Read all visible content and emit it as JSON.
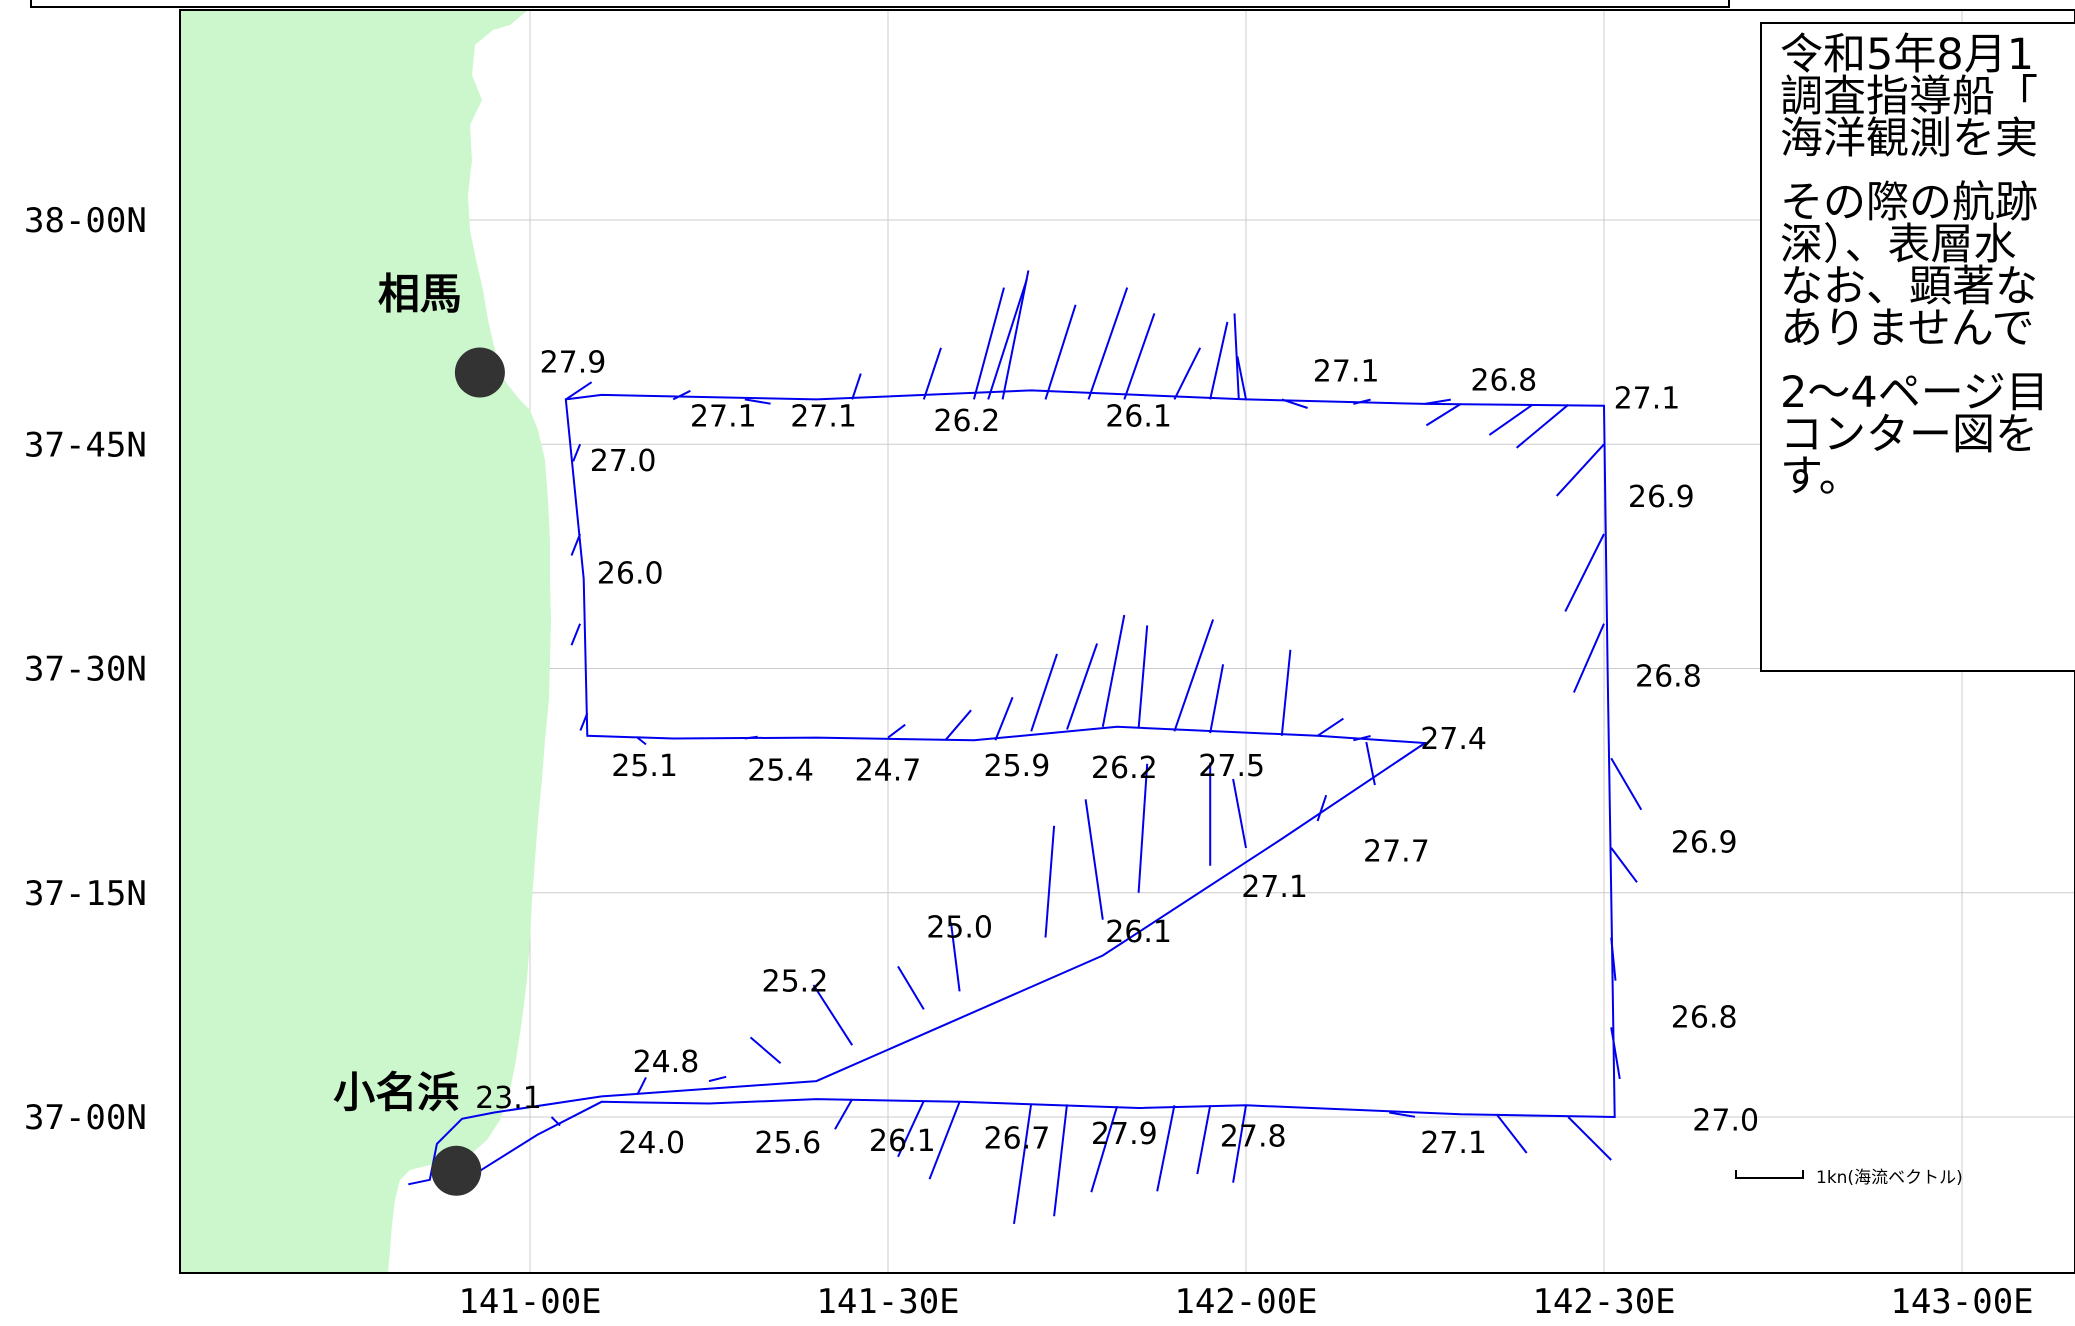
{
  "map": {
    "lon_ticks": [
      {
        "lon": 141.0,
        "label": "141-00E"
      },
      {
        "lon": 141.5,
        "label": "141-30E"
      },
      {
        "lon": 142.0,
        "label": "142-00E"
      },
      {
        "lon": 142.5,
        "label": "142-30E"
      },
      {
        "lon": 143.0,
        "label": "143-00E"
      }
    ],
    "lat_ticks": [
      {
        "lat": 38.0,
        "label": "38-00N"
      },
      {
        "lat": 37.75,
        "label": "37-45N"
      },
      {
        "lat": 37.5,
        "label": "37-30N"
      },
      {
        "lat": 37.25,
        "label": "37-15N"
      },
      {
        "lat": 37.0,
        "label": "37-00N"
      }
    ],
    "colors": {
      "land": "#ccf7cc",
      "track": "#0000ee",
      "grid": "#cccccc",
      "station": "#333333"
    },
    "places": [
      {
        "name": "相馬",
        "lon": 140.93,
        "lat": 37.83
      },
      {
        "name": "小名浜",
        "lon": 140.897,
        "lat": 36.94
      }
    ],
    "track": [
      [
        140.83,
        36.925
      ],
      [
        140.86,
        36.93
      ],
      [
        140.87,
        36.97
      ],
      [
        140.905,
        36.998
      ],
      [
        140.95,
        37.005
      ],
      [
        141.1,
        37.023
      ],
      [
        141.4,
        37.04
      ],
      [
        141.6,
        37.11
      ],
      [
        141.8,
        37.18
      ],
      [
        142.05,
        37.31
      ],
      [
        142.25,
        37.417
      ],
      [
        142.1,
        37.425
      ],
      [
        141.82,
        37.435
      ],
      [
        141.62,
        37.42
      ],
      [
        141.4,
        37.423
      ],
      [
        141.2,
        37.422
      ],
      [
        141.08,
        37.425
      ],
      [
        141.075,
        37.6
      ],
      [
        141.05,
        37.8
      ],
      [
        141.1,
        37.805
      ],
      [
        141.4,
        37.8
      ],
      [
        141.7,
        37.81
      ],
      [
        142.0,
        37.8
      ],
      [
        142.25,
        37.795
      ],
      [
        142.5,
        37.793
      ],
      [
        142.505,
        37.5
      ],
      [
        142.51,
        37.25
      ],
      [
        142.515,
        37.0
      ],
      [
        142.3,
        37.003
      ],
      [
        142.0,
        37.013
      ],
      [
        141.85,
        37.01
      ],
      [
        141.6,
        37.017
      ],
      [
        141.4,
        37.02
      ],
      [
        141.25,
        37.015
      ],
      [
        141.1,
        37.017
      ],
      [
        141.01,
        36.98
      ],
      [
        140.93,
        36.94
      ]
    ],
    "current_vectors": [
      [
        141.05,
        37.8,
        0.3,
        0.2
      ],
      [
        141.2,
        37.8,
        0.2,
        0.1
      ],
      [
        141.3,
        37.8,
        0.3,
        -0.05
      ],
      [
        141.45,
        37.8,
        0.1,
        0.3
      ],
      [
        141.55,
        37.8,
        0.2,
        0.6
      ],
      [
        141.62,
        37.8,
        0.35,
        1.3
      ],
      [
        141.64,
        37.8,
        0.45,
        1.4
      ],
      [
        141.66,
        37.8,
        0.3,
        1.5
      ],
      [
        141.72,
        37.8,
        0.35,
        1.1
      ],
      [
        141.78,
        37.8,
        0.45,
        1.3
      ],
      [
        141.83,
        37.8,
        0.35,
        1.0
      ],
      [
        141.9,
        37.8,
        0.3,
        0.6
      ],
      [
        141.95,
        37.8,
        0.2,
        0.9
      ],
      [
        141.99,
        37.8,
        -0.05,
        1.0
      ],
      [
        142.0,
        37.8,
        -0.1,
        0.5
      ],
      [
        142.05,
        37.8,
        0.3,
        -0.1
      ],
      [
        142.15,
        37.795,
        0.2,
        0.05
      ],
      [
        142.25,
        37.795,
        0.3,
        0.05
      ],
      [
        142.3,
        37.795,
        -0.4,
        -0.25
      ],
      [
        142.4,
        37.794,
        -0.5,
        -0.35
      ],
      [
        142.45,
        37.794,
        -0.6,
        -0.5
      ],
      [
        142.5,
        37.75,
        -0.55,
        -0.6
      ],
      [
        142.5,
        37.65,
        -0.45,
        -0.9
      ],
      [
        142.5,
        37.55,
        -0.35,
        -0.8
      ],
      [
        141.07,
        37.75,
        -0.08,
        -0.2
      ],
      [
        141.07,
        37.65,
        -0.1,
        -0.25
      ],
      [
        141.07,
        37.55,
        -0.1,
        -0.25
      ],
      [
        141.08,
        37.45,
        -0.08,
        -0.2
      ],
      [
        141.15,
        37.423,
        0.1,
        -0.08
      ],
      [
        141.3,
        37.422,
        0.15,
        0.02
      ],
      [
        141.5,
        37.423,
        0.2,
        0.15
      ],
      [
        141.58,
        37.42,
        0.3,
        0.35
      ],
      [
        141.65,
        37.42,
        0.2,
        0.5
      ],
      [
        141.7,
        37.43,
        0.3,
        0.9
      ],
      [
        141.75,
        37.432,
        0.35,
        1.0
      ],
      [
        141.8,
        37.435,
        0.25,
        1.3
      ],
      [
        141.85,
        37.433,
        0.1,
        1.2
      ],
      [
        141.9,
        37.43,
        0.45,
        1.3
      ],
      [
        141.95,
        37.428,
        0.15,
        0.8
      ],
      [
        142.05,
        37.425,
        0.1,
        1.0
      ],
      [
        142.1,
        37.425,
        0.3,
        0.2
      ],
      [
        142.15,
        37.42,
        0.2,
        0.05
      ],
      [
        142.18,
        37.37,
        -0.1,
        0.5
      ],
      [
        142.1,
        37.33,
        0.1,
        0.3
      ],
      [
        142.0,
        37.3,
        -0.15,
        0.8
      ],
      [
        141.95,
        37.28,
        0.0,
        1.2
      ],
      [
        141.85,
        37.25,
        0.1,
        1.5
      ],
      [
        141.8,
        37.22,
        -0.2,
        1.4
      ],
      [
        141.72,
        37.2,
        0.1,
        1.3
      ],
      [
        141.6,
        37.14,
        -0.1,
        0.8
      ],
      [
        141.55,
        37.12,
        -0.3,
        0.5
      ],
      [
        141.45,
        37.08,
        -0.45,
        0.7
      ],
      [
        141.35,
        37.06,
        -0.35,
        0.3
      ],
      [
        141.25,
        37.04,
        0.2,
        0.05
      ],
      [
        141.15,
        37.025,
        0.1,
        0.2
      ],
      [
        141.03,
        37.0,
        0.1,
        -0.1
      ],
      [
        141.45,
        37.02,
        -0.2,
        -0.35
      ],
      [
        141.55,
        37.018,
        -0.3,
        -0.65
      ],
      [
        141.6,
        37.017,
        -0.35,
        -0.9
      ],
      [
        141.7,
        37.015,
        -0.2,
        -1.4
      ],
      [
        141.75,
        37.014,
        -0.15,
        -1.3
      ],
      [
        141.82,
        37.012,
        -0.3,
        -1.0
      ],
      [
        141.9,
        37.013,
        -0.2,
        -1.0
      ],
      [
        141.95,
        37.013,
        -0.15,
        -0.8
      ],
      [
        142.0,
        37.013,
        -0.15,
        -0.9
      ],
      [
        142.2,
        37.005,
        0.3,
        -0.05
      ],
      [
        142.35,
        37.003,
        0.35,
        -0.45
      ],
      [
        142.45,
        37.0,
        0.5,
        -0.5
      ],
      [
        142.51,
        37.1,
        0.1,
        -0.6
      ],
      [
        142.51,
        37.2,
        0.05,
        -0.5
      ],
      [
        142.51,
        37.3,
        0.3,
        -0.4
      ],
      [
        142.51,
        37.4,
        0.35,
        -0.6
      ]
    ],
    "temperatures": [
      {
        "lon": 141.06,
        "lat": 37.83,
        "value": "27.9"
      },
      {
        "lon": 141.27,
        "lat": 37.77,
        "value": "27.1"
      },
      {
        "lon": 141.41,
        "lat": 37.77,
        "value": "27.1"
      },
      {
        "lon": 141.61,
        "lat": 37.765,
        "value": "26.2"
      },
      {
        "lon": 141.85,
        "lat": 37.77,
        "value": "26.1"
      },
      {
        "lon": 142.14,
        "lat": 37.82,
        "value": "27.1"
      },
      {
        "lon": 142.36,
        "lat": 37.81,
        "value": "26.8"
      },
      {
        "lon": 142.56,
        "lat": 37.79,
        "value": "27.1"
      },
      {
        "lon": 141.13,
        "lat": 37.72,
        "value": "27.0"
      },
      {
        "lon": 141.14,
        "lat": 37.595,
        "value": "26.0"
      },
      {
        "lon": 142.58,
        "lat": 37.68,
        "value": "26.9"
      },
      {
        "lon": 142.59,
        "lat": 37.48,
        "value": "26.8"
      },
      {
        "lon": 141.16,
        "lat": 37.38,
        "value": "25.1"
      },
      {
        "lon": 141.35,
        "lat": 37.375,
        "value": "25.4"
      },
      {
        "lon": 141.5,
        "lat": 37.375,
        "value": "24.7"
      },
      {
        "lon": 141.68,
        "lat": 37.38,
        "value": "25.9"
      },
      {
        "lon": 141.83,
        "lat": 37.378,
        "value": "26.2"
      },
      {
        "lon": 141.98,
        "lat": 37.38,
        "value": "27.5"
      },
      {
        "lon": 142.29,
        "lat": 37.41,
        "value": "27.4"
      },
      {
        "lon": 142.21,
        "lat": 37.285,
        "value": "27.7"
      },
      {
        "lon": 142.04,
        "lat": 37.245,
        "value": "27.1"
      },
      {
        "lon": 141.85,
        "lat": 37.195,
        "value": "26.1"
      },
      {
        "lon": 141.6,
        "lat": 37.2,
        "value": "25.0"
      },
      {
        "lon": 141.37,
        "lat": 37.14,
        "value": "25.2"
      },
      {
        "lon": 141.19,
        "lat": 37.05,
        "value": "24.8"
      },
      {
        "lon": 140.97,
        "lat": 37.01,
        "value": "23.1"
      },
      {
        "lon": 142.64,
        "lat": 37.295,
        "value": "26.9"
      },
      {
        "lon": 142.64,
        "lat": 37.1,
        "value": "26.8"
      },
      {
        "lon": 142.67,
        "lat": 36.985,
        "value": "27.0"
      },
      {
        "lon": 141.17,
        "lat": 36.96,
        "value": "24.0"
      },
      {
        "lon": 141.36,
        "lat": 36.96,
        "value": "25.6"
      },
      {
        "lon": 141.52,
        "lat": 36.962,
        "value": "26.1"
      },
      {
        "lon": 141.68,
        "lat": 36.965,
        "value": "26.7"
      },
      {
        "lon": 141.83,
        "lat": 36.97,
        "value": "27.9"
      },
      {
        "lon": 142.01,
        "lat": 36.967,
        "value": "27.8"
      },
      {
        "lon": 142.29,
        "lat": 36.96,
        "value": "27.1"
      }
    ],
    "scale_label": "1kn(海流ベクトル)"
  },
  "note": {
    "paragraphs": [
      [
        "令和5年8月1",
        "調査指導船「",
        "海洋観測を実"
      ],
      [
        "その際の航跡",
        "深）、表層水",
        "なお、顕著な",
        "ありませんで"
      ],
      [
        "2～4ページ目",
        "コンター図を",
        "す。"
      ]
    ]
  }
}
